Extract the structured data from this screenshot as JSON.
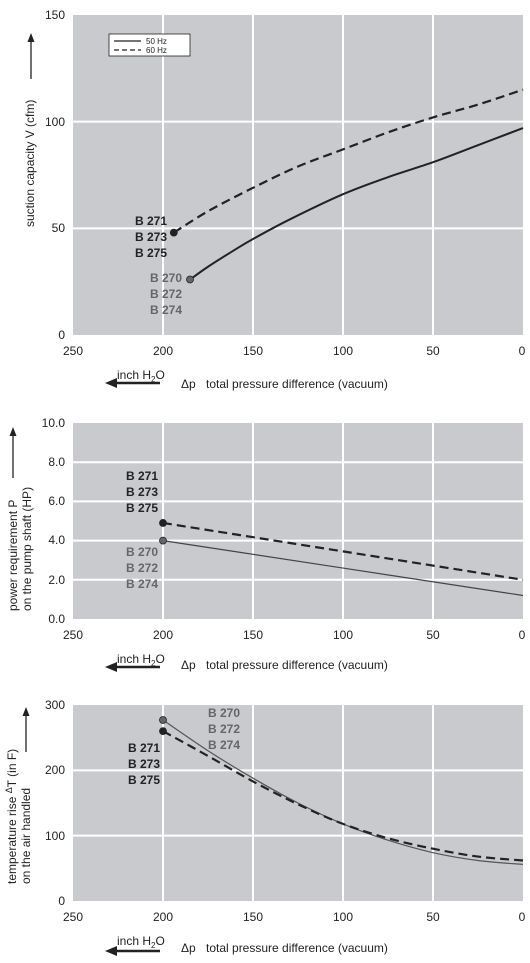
{
  "chart_data": [
    {
      "type": "line",
      "xlabel": "total pressure difference (vacuum)",
      "delta_symbol": "Δp",
      "unit_main": "inch H",
      "unit_sub": "2",
      "unit_end": "O",
      "ylabel": "suction capacity V (cfm)",
      "xlim": [
        250,
        0
      ],
      "ylim": [
        0,
        150
      ],
      "x_ticks": [
        "250",
        "200",
        "150",
        "100",
        "50",
        "0"
      ],
      "y_ticks": [
        "0",
        "50",
        "100",
        "150"
      ],
      "legend": {
        "position": "top-left",
        "entries": [
          "50 Hz",
          "60 Hz"
        ]
      },
      "series": [
        {
          "name": "50 Hz",
          "style": "solid",
          "color": "#222222",
          "x": [
            185,
            175,
            160,
            150,
            130,
            100,
            75,
            50,
            25,
            0
          ],
          "y": [
            26,
            32,
            40,
            45,
            54,
            66,
            74,
            81,
            89,
            97
          ]
        },
        {
          "name": "60 Hz",
          "style": "dashed",
          "color": "#222222",
          "x": [
            194,
            175,
            150,
            125,
            100,
            75,
            50,
            25,
            0
          ],
          "y": [
            48,
            58,
            69,
            79,
            87,
            95,
            102,
            108,
            115
          ]
        }
      ],
      "groups": [
        {
          "lines": [
            "B 271",
            "B 273",
            "B 275"
          ],
          "color": "#222222",
          "marker_x": 194,
          "marker_y": 48
        },
        {
          "lines": [
            "B 270",
            "B 272",
            "B 274"
          ],
          "color": "#666666",
          "marker_x": 185,
          "marker_y": 26
        }
      ]
    },
    {
      "type": "line",
      "xlabel": "total pressure difference (vacuum)",
      "delta_symbol": "Δp",
      "unit_main": "inch H",
      "unit_sub": "2",
      "unit_end": "O",
      "ylabel_line1": "power requirement P",
      "ylabel_line2": "on the pump shaft (HP)",
      "xlim": [
        250,
        0
      ],
      "ylim": [
        0,
        10
      ],
      "x_ticks": [
        "250",
        "200",
        "150",
        "100",
        "50",
        "0"
      ],
      "y_ticks": [
        "0.0",
        "2.0",
        "4.0",
        "6.0",
        "8.0",
        "10.0"
      ],
      "series": [
        {
          "name": "50 Hz",
          "style": "solid",
          "color": "#444444",
          "x": [
            200,
            0
          ],
          "y": [
            4.0,
            1.2
          ]
        },
        {
          "name": "60 Hz",
          "style": "dashed",
          "color": "#222222",
          "x": [
            200,
            0
          ],
          "y": [
            4.9,
            2.0
          ]
        }
      ],
      "groups": [
        {
          "lines": [
            "B 271",
            "B 273",
            "B 275"
          ],
          "color": "#222222",
          "marker_x": 200,
          "marker_y": 4.9
        },
        {
          "lines": [
            "B 270",
            "B 272",
            "B 274"
          ],
          "color": "#666666",
          "marker_x": 200,
          "marker_y": 4.0
        }
      ]
    },
    {
      "type": "line",
      "xlabel": "total pressure difference (vacuum)",
      "delta_symbol": "Δp",
      "unit_main": "inch H",
      "unit_sub": "2",
      "unit_end": "O",
      "ylabel_line1": "temperature rise ",
      "ylabel_delta": "Δ",
      "ylabel_line1_end": "T   (in F)",
      "ylabel_line2": "on the air handled",
      "xlim": [
        250,
        0
      ],
      "ylim": [
        0,
        300
      ],
      "x_ticks": [
        "250",
        "200",
        "150",
        "100",
        "50",
        "0"
      ],
      "y_ticks": [
        "0",
        "100",
        "200",
        "300"
      ],
      "series": [
        {
          "name": "50 Hz",
          "style": "solid",
          "color": "#555555",
          "x": [
            200,
            175,
            150,
            125,
            100,
            75,
            50,
            25,
            0
          ],
          "y": [
            277,
            230,
            188,
            150,
            118,
            93,
            74,
            62,
            56
          ]
        },
        {
          "name": "60 Hz",
          "style": "dashed",
          "color": "#222222",
          "x": [
            200,
            175,
            150,
            125,
            100,
            75,
            50,
            25,
            0
          ],
          "y": [
            260,
            222,
            183,
            148,
            118,
            96,
            80,
            68,
            62
          ]
        }
      ],
      "groups": [
        {
          "lines": [
            "B 270",
            "B 272",
            "B 274"
          ],
          "color": "#666666",
          "marker_x": 200,
          "marker_y": 277
        },
        {
          "lines": [
            "B 271",
            "B 273",
            "B 275"
          ],
          "color": "#222222",
          "marker_x": 200,
          "marker_y": 260
        }
      ]
    }
  ],
  "colors": {
    "plot_bg": "#c8cace",
    "grid": "#ffffff",
    "line": "#222222",
    "label_dark": "#222222",
    "label_gray": "#666666"
  }
}
